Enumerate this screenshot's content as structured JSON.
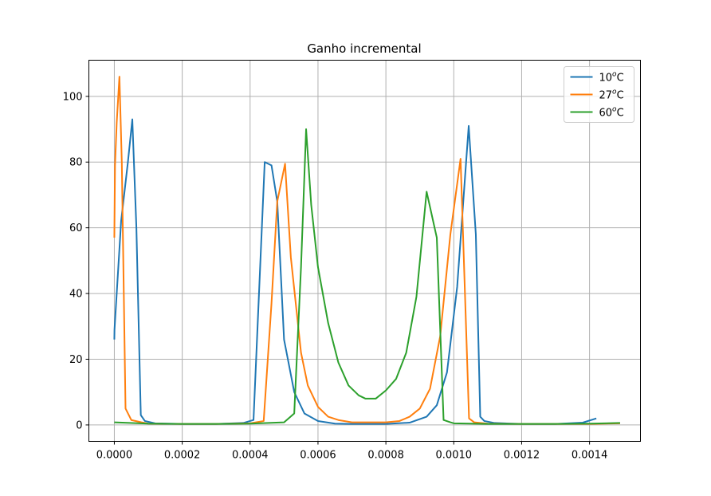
{
  "chart_data": {
    "type": "line",
    "title": "Ganho incremental",
    "xlabel": "",
    "ylabel": "",
    "xlim": [
      -7.5e-05,
      0.00155
    ],
    "ylim": [
      -5,
      111
    ],
    "xticks": [
      0.0,
      0.0002,
      0.0004,
      0.0006,
      0.0008,
      0.001,
      0.0012,
      0.0014
    ],
    "xtick_labels": [
      "0.0000",
      "0.0002",
      "0.0004",
      "0.0006",
      "0.0008",
      "0.0010",
      "0.0012",
      "0.0014"
    ],
    "yticks": [
      0,
      20,
      40,
      60,
      80,
      100
    ],
    "ytick_labels": [
      "0",
      "20",
      "40",
      "60",
      "80",
      "100"
    ],
    "grid": true,
    "legend_position": "top-right",
    "series": [
      {
        "name": "10",
        "sup": "o",
        "unit": "C",
        "color": "#1f77b4",
        "x": [
          0.0,
          5e-07,
          2e-05,
          4e-05,
          5.3e-05,
          6.5e-05,
          7.8e-05,
          9e-05,
          0.00012,
          0.0002,
          0.0003,
          0.00038,
          0.00041,
          0.000443,
          0.000463,
          0.00048,
          0.0005,
          0.00053,
          0.00056,
          0.0006,
          0.00065,
          0.0007,
          0.0008,
          0.00087,
          0.00092,
          0.00095,
          0.00098,
          0.00101,
          0.001044,
          0.001065,
          0.001078,
          0.00109,
          0.00112,
          0.0012,
          0.0013,
          0.00138,
          0.00142
        ],
        "y": [
          26,
          29,
          62,
          80,
          93,
          60,
          3,
          1.2,
          0.5,
          0.3,
          0.3,
          0.6,
          1.5,
          80,
          79,
          68,
          26,
          10,
          3.5,
          1.2,
          0.4,
          0.3,
          0.3,
          0.7,
          2.5,
          6,
          16,
          42,
          91,
          58,
          2.5,
          1.2,
          0.6,
          0.3,
          0.3,
          0.7,
          2
        ]
      },
      {
        "name": "27",
        "sup": "o",
        "unit": "C",
        "color": "#ff7f0e",
        "x": [
          0.0,
          2e-06,
          7e-06,
          1.5e-05,
          2.2e-05,
          3.3e-05,
          5e-05,
          8e-05,
          0.0001,
          0.0002,
          0.0003,
          0.0004,
          0.00044,
          0.000463,
          0.00048,
          0.000503,
          0.00052,
          0.00055,
          0.00057,
          0.0006,
          0.00063,
          0.00066,
          0.0007,
          0.0008,
          0.00084,
          0.00087,
          0.0009,
          0.00093,
          0.00096,
          0.00099,
          0.00102,
          0.001045,
          0.00106,
          0.0011,
          0.0012,
          0.0013,
          0.0014,
          0.00149
        ],
        "y": [
          57,
          79,
          92,
          106,
          80,
          5,
          1.5,
          0.8,
          0.4,
          0.3,
          0.3,
          0.5,
          1.2,
          37,
          68,
          79.5,
          51,
          22,
          12,
          5.5,
          2.5,
          1.5,
          0.8,
          0.8,
          1.2,
          2.5,
          5,
          11,
          27,
          58,
          81,
          2,
          0.8,
          0.4,
          0.3,
          0.3,
          0.3,
          0.5
        ]
      },
      {
        "name": "60",
        "sup": "o",
        "unit": "C",
        "color": "#2ca02c",
        "x": [
          0.0,
          0.0001,
          0.0002,
          0.0003,
          0.0004,
          0.0005,
          0.00053,
          0.00055,
          0.000565,
          0.00058,
          0.0006,
          0.00063,
          0.00066,
          0.00069,
          0.00072,
          0.00074,
          0.00077,
          0.0008,
          0.00083,
          0.00086,
          0.00089,
          0.00092,
          0.00095,
          0.00097,
          0.00099,
          0.001,
          0.0011,
          0.0012,
          0.0013,
          0.0014,
          0.00149
        ],
        "y": [
          0.8,
          0.4,
          0.3,
          0.3,
          0.4,
          0.8,
          3.5,
          48,
          90,
          67,
          48,
          31,
          19,
          12,
          9,
          8,
          8,
          10.5,
          14,
          22,
          39,
          71,
          57,
          1.5,
          0.8,
          0.5,
          0.3,
          0.3,
          0.3,
          0.4,
          0.6
        ]
      }
    ]
  }
}
